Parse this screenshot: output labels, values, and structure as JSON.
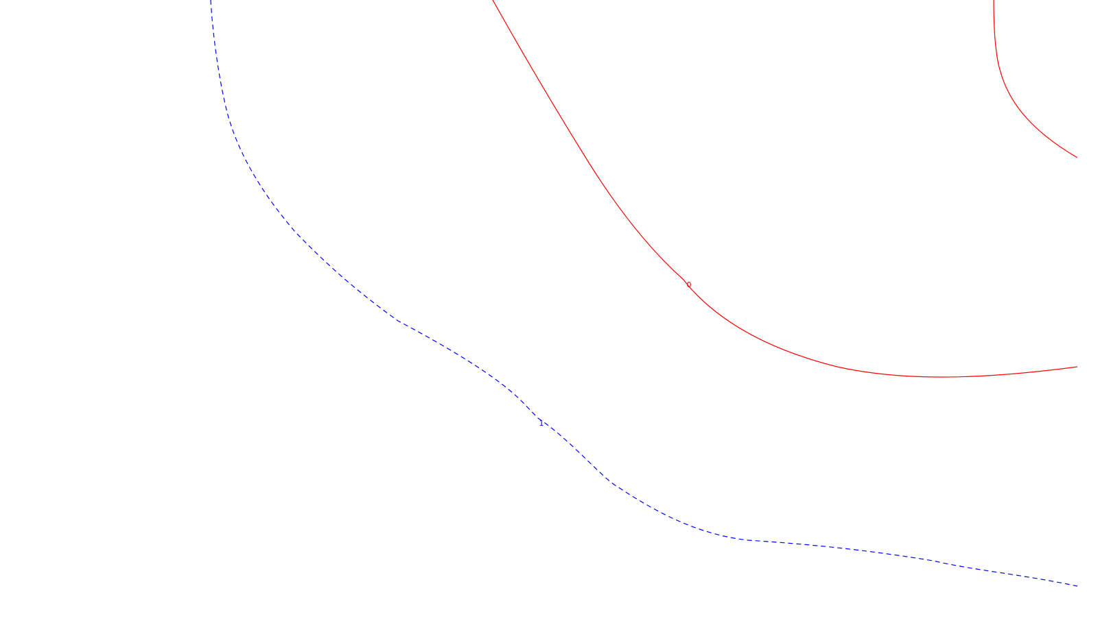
{
  "map": {
    "background": "#ffffff",
    "contours": [
      {
        "id": "contour-0-left",
        "level": "0",
        "color": "#ff0000",
        "style": "solid",
        "show_label": true
      },
      {
        "id": "contour-0-right",
        "level": "0",
        "color": "#ff0000",
        "style": "solid",
        "show_label": false
      },
      {
        "id": "contour-1",
        "level": "1",
        "color": "#0000ff",
        "style": "dashed",
        "show_label": true
      }
    ]
  }
}
